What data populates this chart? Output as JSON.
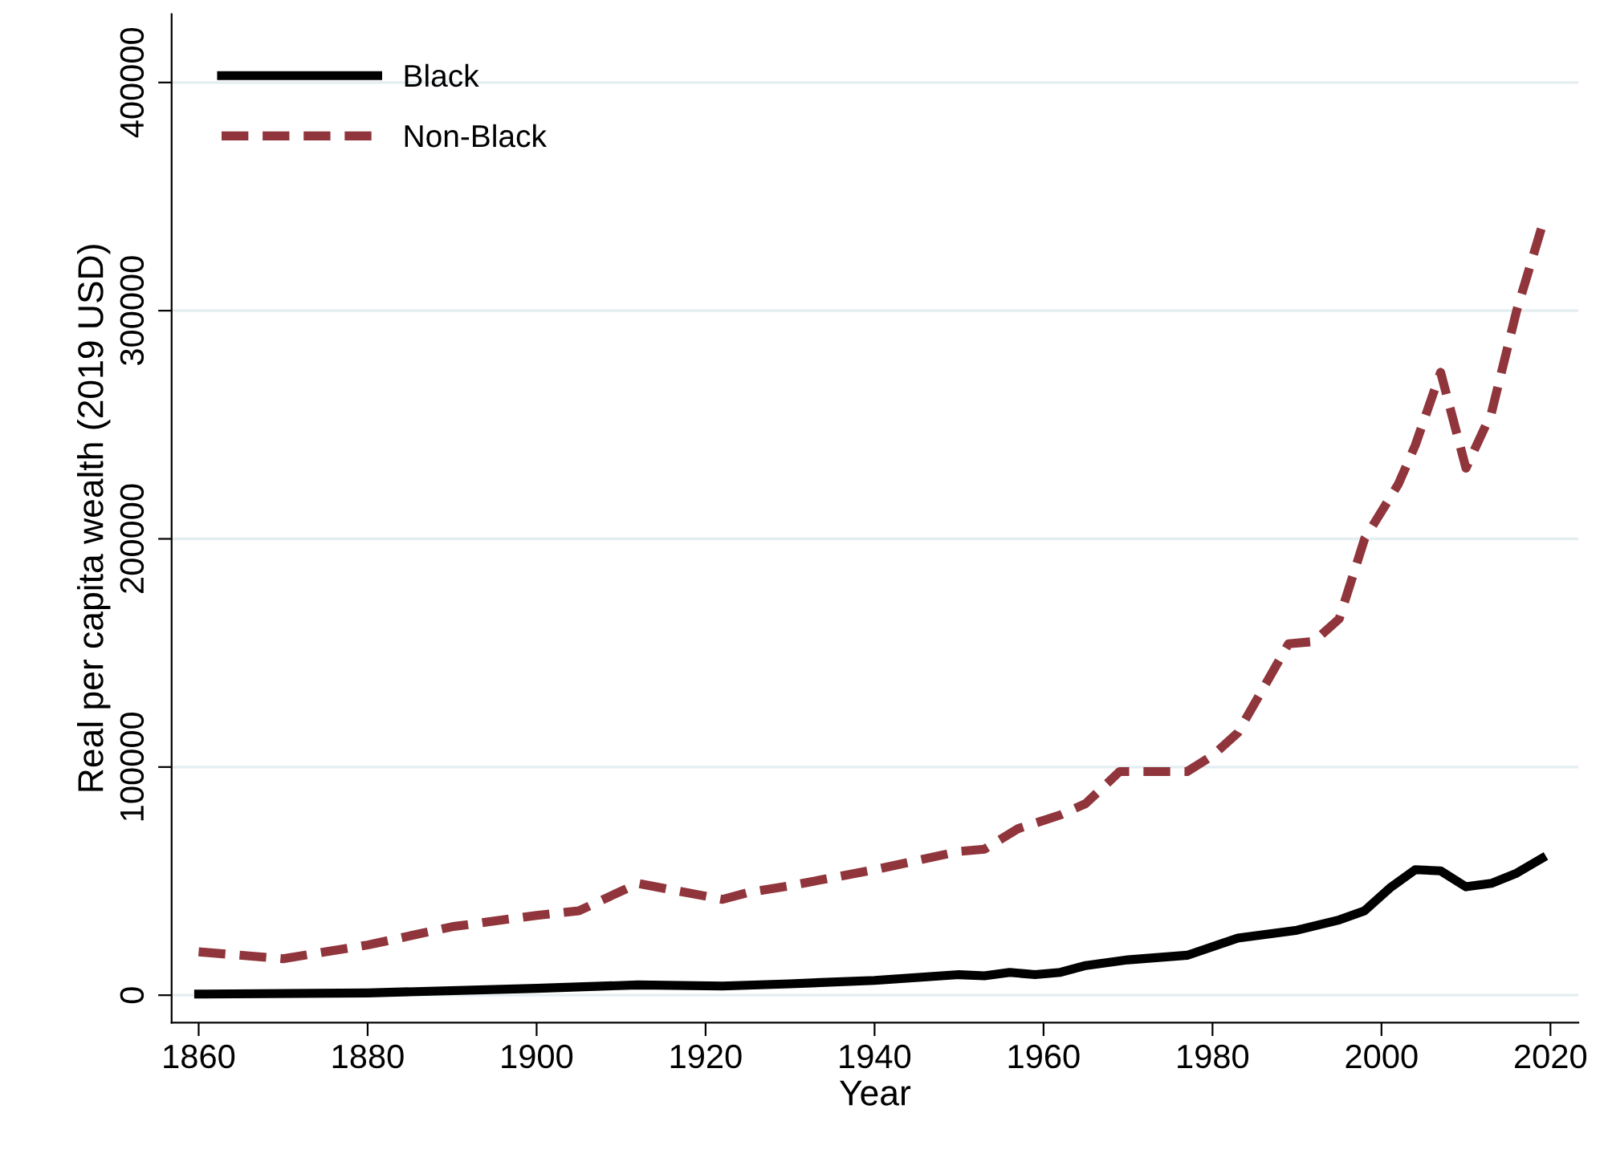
{
  "chart_data": {
    "type": "line",
    "xlabel": "Year",
    "ylabel": "Real per capita wealth (2019 USD)",
    "xlim": [
      1856.8,
      2023.3
    ],
    "ylim": [
      -12000,
      430000
    ],
    "xticks": [
      1860,
      1880,
      1900,
      1920,
      1940,
      1960,
      1980,
      2000,
      2020
    ],
    "yticks": [
      0,
      100000,
      200000,
      300000,
      400000
    ],
    "grid": "y",
    "legend": "top left",
    "series": [
      {
        "name": "Black",
        "color": "#000000",
        "line_style": "solid",
        "x": [
          1860,
          1880,
          1900,
          1912,
          1922,
          1930,
          1940,
          1950,
          1953,
          1956,
          1959,
          1962,
          1965,
          1970,
          1977,
          1983,
          1990,
          1995,
          1998,
          2001,
          2004,
          2007,
          2010,
          2013,
          2016,
          2019
        ],
        "values": [
          500,
          1000,
          3000,
          4500,
          4000,
          5000,
          6500,
          9000,
          8500,
          10000,
          9000,
          10000,
          13000,
          15500,
          17500,
          25000,
          28500,
          33000,
          37000,
          47000,
          55000,
          54500,
          47500,
          49000,
          53500,
          60000
        ]
      },
      {
        "name": "Non-Black",
        "color": "#90353b",
        "line_style": "dashed",
        "x": [
          1860,
          1870,
          1880,
          1890,
          1900,
          1905,
          1912,
          1922,
          1925,
          1930,
          1940,
          1950,
          1953,
          1957,
          1962,
          1965,
          1969,
          1977,
          1980,
          1983,
          1989,
          1992,
          1995,
          1998,
          2002,
          2004,
          2007,
          2010,
          2013,
          2016,
          2019
        ],
        "values": [
          19000,
          16000,
          22000,
          30000,
          35000,
          37000,
          49000,
          42000,
          45000,
          48000,
          55000,
          63000,
          64000,
          73000,
          79000,
          84000,
          98000,
          98000,
          105000,
          115000,
          154000,
          155000,
          165000,
          200000,
          224000,
          241000,
          273000,
          231000,
          255000,
          300000,
          337000
        ]
      }
    ]
  }
}
